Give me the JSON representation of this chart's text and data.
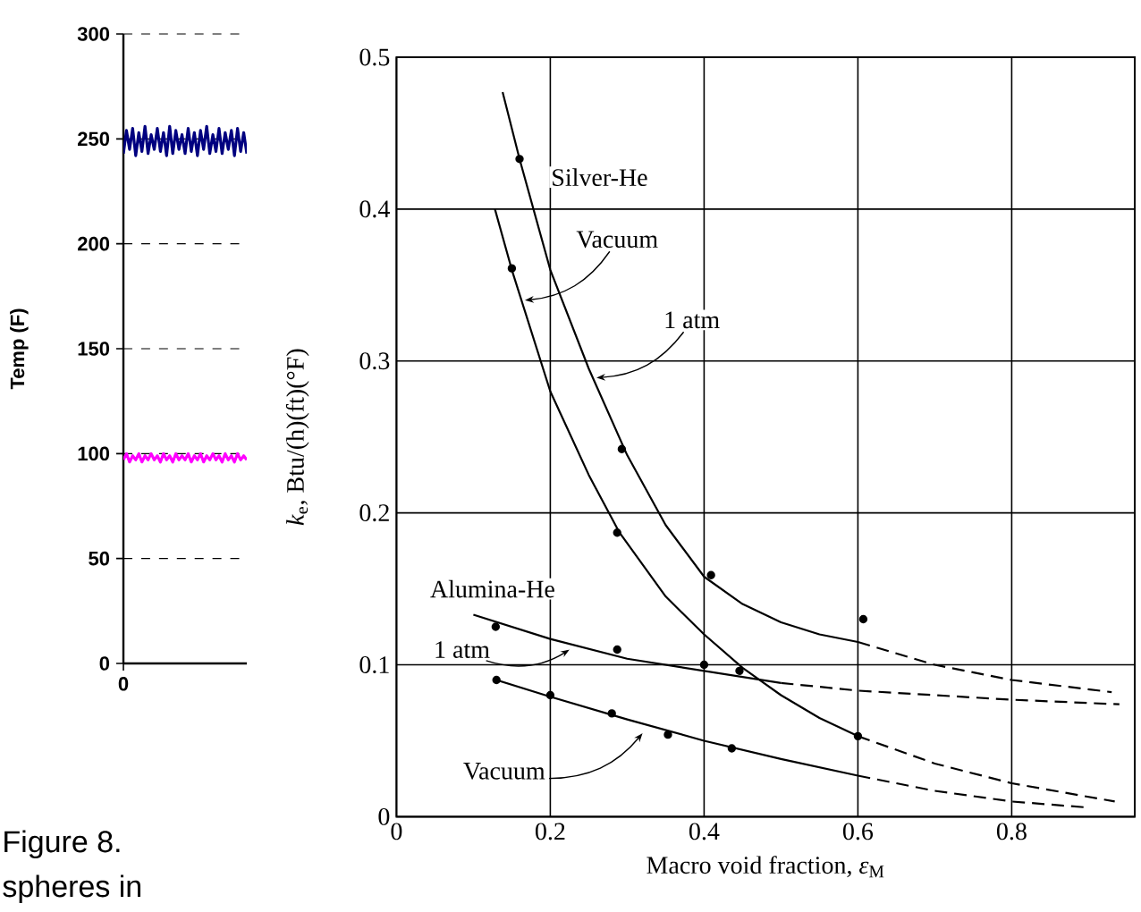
{
  "chart_data": [
    {
      "type": "line",
      "ylabel": "Temp (F)",
      "ylim": [
        0,
        300
      ],
      "yticks": [
        0,
        50,
        100,
        150,
        200,
        250,
        300
      ],
      "categories": [
        "0",
        null,
        null,
        null,
        null,
        null,
        null,
        null,
        null,
        null,
        null,
        null,
        null,
        null,
        null,
        null,
        null,
        null,
        null,
        null,
        null,
        null,
        null,
        null,
        null,
        null,
        null,
        null,
        null,
        null,
        null,
        null,
        null,
        null,
        null,
        null,
        null,
        null,
        null,
        null,
        null
      ],
      "grid": "y",
      "annotations": [
        "Figure 8.",
        "spheres in"
      ],
      "series": [
        {
          "color": "#000080",
          "values": [
            243,
            254,
            245,
            255,
            242,
            253,
            244,
            256,
            243,
            252,
            245,
            255,
            244,
            253,
            242,
            256,
            243,
            254,
            245,
            252,
            243,
            255,
            244,
            253,
            242,
            254,
            245,
            256,
            243,
            252,
            244,
            255,
            243,
            253,
            245,
            254,
            242,
            255,
            244,
            253,
            243
          ]
        },
        {
          "color": "#ff00ff",
          "values": [
            97,
            100,
            96,
            99,
            97,
            100,
            96,
            99,
            97,
            100,
            97,
            99,
            96,
            100,
            97,
            99,
            96,
            100,
            97,
            99,
            97,
            100,
            96,
            99,
            97,
            100,
            96,
            99,
            97,
            100,
            97,
            99,
            96,
            100,
            97,
            99,
            96,
            100,
            97,
            99,
            97
          ]
        }
      ]
    },
    {
      "type": "line",
      "xlabel": "Macro void fraction, *ε*$_{M}$",
      "ylabel": "*k*$_{e}$, Btu/(h)(ft)(°F)",
      "xlim": [
        0,
        0.96
      ],
      "ylim": [
        0,
        0.5
      ],
      "xticks": [
        0,
        0.2,
        0.4,
        0.6,
        0.8
      ],
      "yticks": [
        0,
        0.1,
        0.2,
        0.3,
        0.4,
        0.5
      ],
      "grid": true,
      "annotations": [
        "Silver-He",
        {
          "text": "Vacuum",
          "x": 0.167,
          "y": 0.34
        },
        {
          "text": "1 atm",
          "x": 0.26,
          "y": 0.289
        },
        "Alumina-He",
        {
          "text": "1 atm",
          "x": 0.225,
          "y": 0.11
        },
        {
          "text": "Vacuum",
          "x": 0.32,
          "y": 0.055
        }
      ],
      "series": [
        {
          "type": "line",
          "line_style": "solid",
          "color": "#000000",
          "x": [
            0.138,
            0.16,
            0.2,
            0.25,
            0.3,
            0.35,
            0.4,
            0.45,
            0.5,
            0.55,
            0.6
          ],
          "values": [
            0.477,
            0.433,
            0.36,
            0.295,
            0.238,
            0.192,
            0.158,
            0.14,
            0.128,
            0.12,
            0.115
          ]
        },
        {
          "type": "line",
          "line_style": "dashed",
          "color": "#000000",
          "x": [
            0.6,
            0.7,
            0.8,
            0.93
          ],
          "values": [
            0.115,
            0.1,
            0.09,
            0.082
          ]
        },
        {
          "type": "line",
          "line_style": "solid",
          "color": "#000000",
          "x": [
            0.128,
            0.15,
            0.2,
            0.25,
            0.29,
            0.35,
            0.4,
            0.45,
            0.5,
            0.55,
            0.6
          ],
          "values": [
            0.4,
            0.36,
            0.28,
            0.225,
            0.187,
            0.145,
            0.12,
            0.098,
            0.08,
            0.065,
            0.053
          ]
        },
        {
          "type": "line",
          "line_style": "dashed",
          "color": "#000000",
          "x": [
            0.6,
            0.7,
            0.8,
            0.934
          ],
          "values": [
            0.053,
            0.035,
            0.022,
            0.01
          ]
        },
        {
          "type": "line",
          "line_style": "solid",
          "color": "#000000",
          "x": [
            0.1,
            0.2,
            0.3,
            0.4,
            0.5
          ],
          "values": [
            0.133,
            0.117,
            0.104,
            0.096,
            0.088
          ]
        },
        {
          "type": "line",
          "line_style": "dashed",
          "color": "#000000",
          "x": [
            0.5,
            0.6,
            0.8,
            0.94
          ],
          "values": [
            0.088,
            0.083,
            0.077,
            0.074
          ]
        },
        {
          "type": "line",
          "line_style": "solid",
          "color": "#000000",
          "x": [
            0.13,
            0.2,
            0.3,
            0.4,
            0.5,
            0.6
          ],
          "values": [
            0.09,
            0.079,
            0.064,
            0.05,
            0.038,
            0.027
          ]
        },
        {
          "type": "line",
          "line_style": "dashed",
          "color": "#000000",
          "x": [
            0.6,
            0.7,
            0.8,
            0.9
          ],
          "values": [
            0.027,
            0.017,
            0.01,
            0.006
          ]
        },
        {
          "type": "scatter",
          "marker": "circle",
          "color": "#000000",
          "x": [
            0.16,
            0.293,
            0.409,
            0.607,
            0.15,
            0.287,
            0.6,
            0.129,
            0.287,
            0.4,
            0.446,
            0.13,
            0.2,
            0.28,
            0.353,
            0.436
          ],
          "values": [
            0.433,
            0.242,
            0.159,
            0.13,
            0.361,
            0.187,
            0.053,
            0.125,
            0.11,
            0.1,
            0.096,
            0.09,
            0.08,
            0.068,
            0.054,
            0.045
          ]
        }
      ]
    }
  ]
}
